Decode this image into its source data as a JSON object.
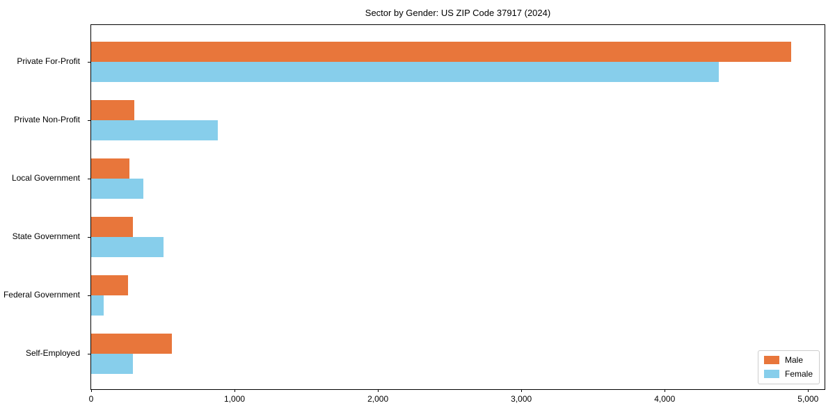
{
  "title": "Sector by Gender: US ZIP Code 37917 (2024)",
  "chart_data": {
    "type": "bar",
    "orientation": "horizontal",
    "title": "Sector by Gender: US ZIP Code 37917 (2024)",
    "xlabel": "",
    "ylabel": "",
    "grid": false,
    "legend_position": "lower right",
    "xlim": [
      0,
      5115
    ],
    "categories": [
      "Private For-Profit",
      "Private Non-Profit",
      "Local Government",
      "State Government",
      "Federal Government",
      "Self-Employed"
    ],
    "series": [
      {
        "name": "Male",
        "color": "#e8763b",
        "values": [
          4880,
          300,
          265,
          290,
          255,
          565
        ]
      },
      {
        "name": "Female",
        "color": "#87ceeb",
        "values": [
          4375,
          885,
          365,
          505,
          85,
          290
        ]
      }
    ],
    "xticks": [
      {
        "value": 0,
        "label": "0"
      },
      {
        "value": 1000,
        "label": "1,000"
      },
      {
        "value": 2000,
        "label": "2,000"
      },
      {
        "value": 3000,
        "label": "3,000"
      },
      {
        "value": 4000,
        "label": "4,000"
      },
      {
        "value": 5000,
        "label": "5,000"
      }
    ]
  }
}
